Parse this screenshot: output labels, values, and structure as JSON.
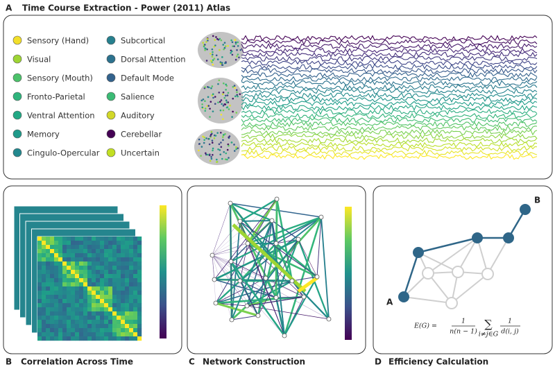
{
  "panel_a": {
    "letter": "A",
    "title": "Time Course Extraction - Power (2011) Atlas",
    "legend": [
      {
        "name": "Sensory (Hand)",
        "color": "#f2df2a"
      },
      {
        "name": "Visual",
        "color": "#9ed534"
      },
      {
        "name": "Sensory (Mouth)",
        "color": "#4cc26a"
      },
      {
        "name": "Fronto-Parietal",
        "color": "#2fb47c"
      },
      {
        "name": "Ventral Attention",
        "color": "#22a884"
      },
      {
        "name": "Memory",
        "color": "#1f9a8a"
      },
      {
        "name": "Cingulo-Opercular",
        "color": "#23888e"
      },
      {
        "name": "Subcortical",
        "color": "#26808e"
      },
      {
        "name": "Dorsal Attention",
        "color": "#2c728e"
      },
      {
        "name": "Default Mode",
        "color": "#33638d"
      },
      {
        "name": "Salience",
        "color": "#3bbb75"
      },
      {
        "name": "Auditory",
        "color": "#d2d829"
      },
      {
        "name": "Cerebellar",
        "color": "#440154"
      },
      {
        "name": "Uncertain",
        "color": "#c2df23"
      }
    ]
  },
  "panel_b": {
    "letter": "B",
    "title": "Correlation Across Time"
  },
  "panel_c": {
    "letter": "C",
    "title": "Network Construction"
  },
  "panel_d": {
    "letter": "D",
    "title": "Efficiency Calculation",
    "node_start": "A",
    "node_end": "B",
    "formula": {
      "lhs": "E(G) =",
      "num1": "1",
      "den1": "n(n − 1)",
      "sum": "∑",
      "sub": "i≠j∈G",
      "num2": "1",
      "den2": "d(i, j)"
    }
  }
}
